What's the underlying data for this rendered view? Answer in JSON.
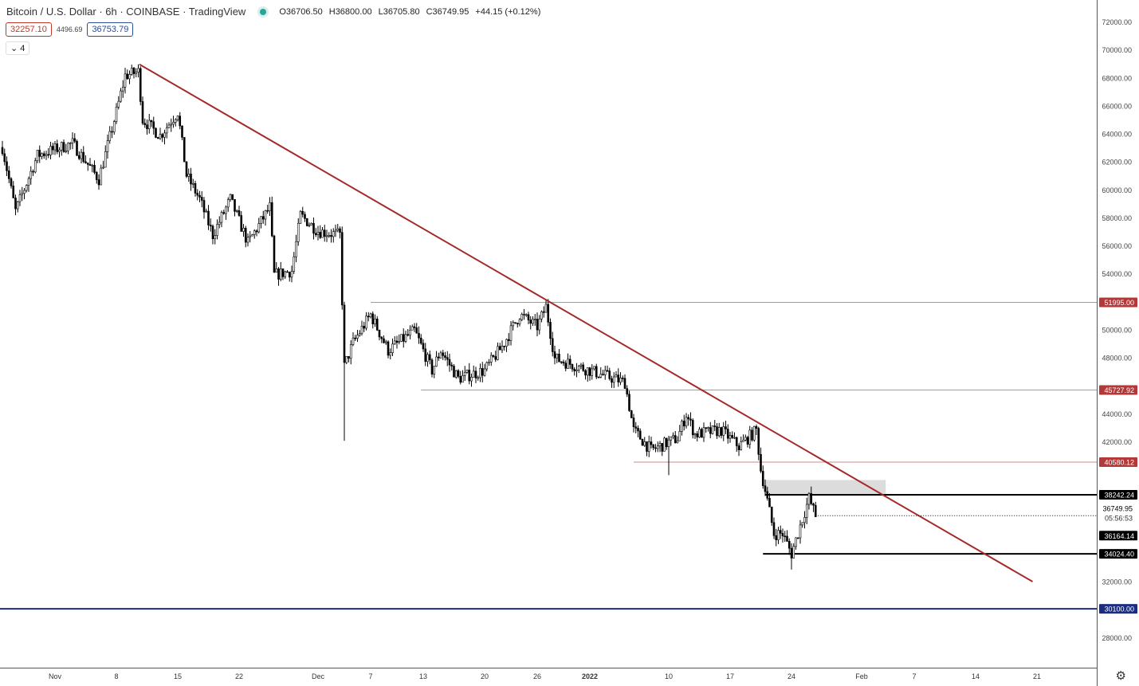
{
  "header": {
    "title": "Bitcoin / U.S. Dollar · 6h · COINBASE · TradingView",
    "status_color": "#26a69a",
    "open": "O36706.50",
    "high": "H36800.00",
    "low": "L36705.80",
    "close": "C36749.95",
    "change": "+44.15 (+0.12%)"
  },
  "indicators": {
    "lower": "32257.10",
    "width": "4496.69",
    "upper": "36753.79",
    "lower_color": "#c0392b",
    "upper_color": "#2a4d9b",
    "collapse_label": "4"
  },
  "chart_data": {
    "type": "candlestick",
    "interval": "6h",
    "symbol": "BTCUSD",
    "ylim": [
      27000,
      73500
    ],
    "yticks": [
      72000,
      70000,
      68000,
      66000,
      64000,
      62000,
      60000,
      58000,
      56000,
      54000,
      52000,
      50000,
      48000,
      46000,
      44000,
      42000,
      40000,
      38000,
      36000,
      34000,
      32000,
      30000,
      28000
    ],
    "xticks": [
      {
        "date": "2021-11-01",
        "label": "Nov"
      },
      {
        "date": "2021-11-08",
        "label": "8"
      },
      {
        "date": "2021-11-15",
        "label": "15"
      },
      {
        "date": "2021-11-22",
        "label": "22"
      },
      {
        "date": "2021-12-01",
        "label": "Dec"
      },
      {
        "date": "2021-12-07",
        "label": "7"
      },
      {
        "date": "2021-12-13",
        "label": "13"
      },
      {
        "date": "2021-12-20",
        "label": "20"
      },
      {
        "date": "2021-12-26",
        "label": "26"
      },
      {
        "date": "2022-01-01",
        "label": "2022"
      },
      {
        "date": "2022-01-10",
        "label": "10"
      },
      {
        "date": "2022-01-17",
        "label": "17"
      },
      {
        "date": "2022-01-24",
        "label": "24"
      },
      {
        "date": "2022-02-01",
        "label": "Feb"
      },
      {
        "date": "2022-02-07",
        "label": "7"
      },
      {
        "date": "2022-02-14",
        "label": "14"
      },
      {
        "date": "2022-02-21",
        "label": "21"
      }
    ],
    "price_path": [
      [
        "2021-10-26",
        63063
      ],
      [
        "2021-10-27T12:00",
        58510
      ],
      [
        "2021-10-30",
        62500
      ],
      [
        "2021-11-03",
        63350
      ],
      [
        "2021-11-06",
        60790
      ],
      [
        "2021-11-08",
        65600
      ],
      [
        "2021-11-09",
        68190
      ],
      [
        "2021-11-10T12:00",
        68470
      ],
      [
        "2021-11-11",
        65060
      ],
      [
        "2021-11-13",
        63900
      ],
      [
        "2021-11-15",
        65600
      ],
      [
        "2021-11-16",
        61070
      ],
      [
        "2021-11-17T12:00",
        59360
      ],
      [
        "2021-11-19",
        56800
      ],
      [
        "2021-11-21",
        59360
      ],
      [
        "2021-11-23",
        56230
      ],
      [
        "2021-11-25T12:00",
        58790
      ],
      [
        "2021-11-26",
        53950
      ],
      [
        "2021-11-28",
        54240
      ],
      [
        "2021-11-29",
        58220
      ],
      [
        "2021-12-01",
        57090
      ],
      [
        "2021-12-03T12:00",
        56800
      ],
      [
        "2021-12-04",
        47410
      ],
      [
        "2021-12-05",
        49120
      ],
      [
        "2021-12-07",
        51110
      ],
      [
        "2021-12-09",
        48550
      ],
      [
        "2021-12-12",
        49970
      ],
      [
        "2021-12-14",
        47130
      ],
      [
        "2021-12-15",
        48550
      ],
      [
        "2021-12-17",
        46560
      ],
      [
        "2021-12-20",
        47130
      ],
      [
        "2021-12-22",
        48830
      ],
      [
        "2021-12-24",
        51110
      ],
      [
        "2021-12-26",
        50260
      ],
      [
        "2021-12-27",
        51680
      ],
      [
        "2021-12-28",
        47980
      ],
      [
        "2022-01-01",
        47130
      ],
      [
        "2022-01-05",
        46270
      ],
      [
        "2022-01-06",
        42860
      ],
      [
        "2022-01-08",
        41430
      ],
      [
        "2022-01-11",
        42290
      ],
      [
        "2022-01-12",
        44000
      ],
      [
        "2022-01-13",
        42570
      ],
      [
        "2022-01-16",
        42860
      ],
      [
        "2022-01-18",
        41710
      ],
      [
        "2022-01-20",
        42860
      ],
      [
        "2022-01-20T12:00",
        40010
      ],
      [
        "2022-01-21",
        38590
      ],
      [
        "2022-01-22",
        35460
      ],
      [
        "2022-01-23",
        35460
      ],
      [
        "2022-01-24",
        34030
      ],
      [
        "2022-01-25",
        36030
      ],
      [
        "2022-01-26",
        38020
      ],
      [
        "2022-01-26T18:00",
        36749.95
      ]
    ],
    "extremes": [
      {
        "date": "2021-11-10T12:00",
        "high": 69000
      },
      {
        "date": "2021-12-04",
        "low": 42100
      },
      {
        "date": "2022-01-10",
        "low": 39650
      },
      {
        "date": "2022-01-24",
        "low": 32900
      }
    ],
    "trendline": {
      "from": [
        "2021-11-10T15:00",
        69000
      ],
      "to": [
        "2022-02-20T12:00",
        32040
      ],
      "color": "#a52a2a"
    },
    "hlines": [
      {
        "price": 51995,
        "label": "51995.00",
        "from": "2021-12-07",
        "color": "#b33939",
        "style": "thin"
      },
      {
        "price": 45727.92,
        "label": "45727.92",
        "from": "2021-12-12T18:00",
        "color": "#b33939",
        "style": "thin"
      },
      {
        "price": 40580.12,
        "label": "40580.12",
        "from": "2022-01-06",
        "color": "#b33939",
        "style": "thin"
      },
      {
        "price": 38242.24,
        "label": "38242.24",
        "from": "2022-01-21",
        "color": "#000000",
        "style": "thick"
      },
      {
        "price": 34024.4,
        "label": "34024.40",
        "from": "2022-01-20T18:00",
        "color": "#000000",
        "style": "thick"
      },
      {
        "price": 30100,
        "label": "30100.00",
        "from": "2021-10-25",
        "color": "#1a2d80",
        "style": "thick"
      }
    ],
    "zone": {
      "from": "2022-01-21",
      "to": "2022-02-03T18:00",
      "low": 38190,
      "high": 39300,
      "color": "#dcdcdc"
    },
    "last_price": {
      "price": 36749.95,
      "label": "36749.95",
      "countdown": "05:56:53"
    },
    "extra_label": {
      "price": 36164.14,
      "label": "36164.14"
    }
  }
}
